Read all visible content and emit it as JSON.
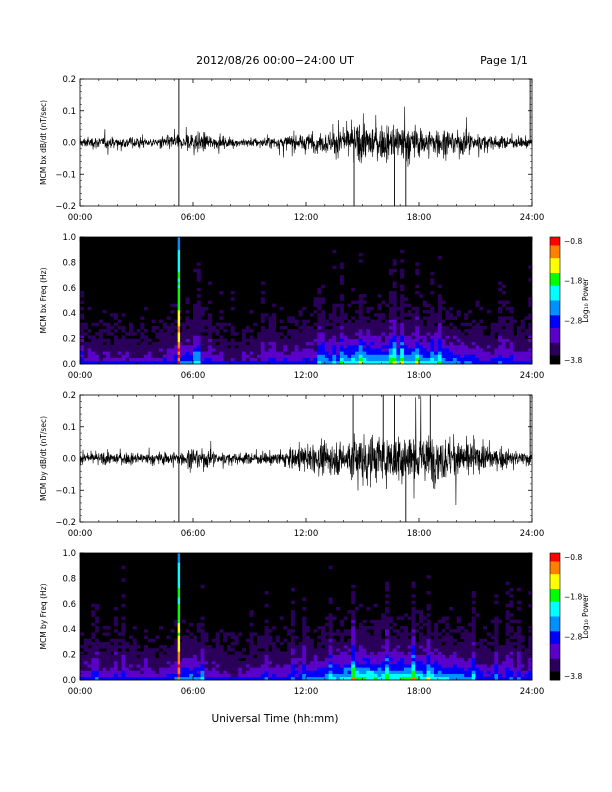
{
  "header": {
    "title": "2012/08/26  00:00−24:00 UT",
    "page": "Page 1/1"
  },
  "x_axis_title": "Universal Time (hh:mm)",
  "colors": {
    "background": "#ffffff",
    "trace": "#000000",
    "spectrogram_background": "#000000",
    "colorscale": [
      "#000000",
      "#2a005a",
      "#5a00c8",
      "#0000ff",
      "#0090ff",
      "#00ffff",
      "#00ff00",
      "#ffff00",
      "#ff8000",
      "#ff0000"
    ]
  },
  "chart_data": [
    {
      "type": "line",
      "ylabel": "MCM bx dB/dt (nT/sec)",
      "xlim": [
        0,
        24
      ],
      "ylim": [
        -0.2,
        0.2
      ],
      "x_ticks": [
        "00:00",
        "06:00",
        "12:00",
        "18:00",
        "24:00"
      ],
      "y_ticks": [
        "0.2",
        "0.1",
        "0.0",
        "−0.1",
        "−0.2"
      ],
      "y_tick_values": [
        0.2,
        0.1,
        0.0,
        -0.1,
        -0.2
      ],
      "envelope": {
        "hours": [
          0,
          2,
          4,
          5,
          5.5,
          6,
          7,
          8,
          10,
          12,
          13,
          14,
          15,
          16,
          17,
          18,
          19,
          20,
          22,
          24
        ],
        "amplitude": [
          0.025,
          0.03,
          0.02,
          0.04,
          0.03,
          0.06,
          0.03,
          0.02,
          0.025,
          0.04,
          0.05,
          0.07,
          0.09,
          0.08,
          0.09,
          0.07,
          0.07,
          0.06,
          0.03,
          0.025
        ]
      },
      "spikes": [
        {
          "t": 5.25,
          "value": 0.2
        },
        {
          "t": 5.25,
          "value": -0.2
        },
        {
          "t": 14.55,
          "value": -0.2
        },
        {
          "t": 16.7,
          "value": -0.2
        },
        {
          "t": 17.3,
          "value": -0.2
        },
        {
          "t": 23.9,
          "value": 0.2
        }
      ]
    },
    {
      "type": "heatmap",
      "ylabel": "MCM bx Freq (Hz)",
      "xlim": [
        0,
        24
      ],
      "ylim": [
        0,
        1.0
      ],
      "x_ticks": [
        "00:00",
        "06:00",
        "12:00",
        "18:00",
        "24:00"
      ],
      "y_ticks": [
        "1.0",
        "0.8",
        "0.6",
        "0.4",
        "0.2",
        "0.0"
      ],
      "y_tick_values": [
        1.0,
        0.8,
        0.6,
        0.4,
        0.2,
        0.0
      ],
      "activity": {
        "hours": [
          0,
          4,
          5,
          6,
          7,
          8,
          10,
          12,
          13,
          14,
          15,
          16,
          17,
          18,
          19,
          20,
          22,
          24
        ],
        "level": [
          0.3,
          0.25,
          0.45,
          0.55,
          0.3,
          0.2,
          0.3,
          0.4,
          0.5,
          0.6,
          0.75,
          0.65,
          0.7,
          0.65,
          0.6,
          0.5,
          0.35,
          0.3
        ]
      },
      "bright_column_hour": 5.25,
      "colorbar": {
        "label": "Log₁₀ Power",
        "ticks": [
          "−0.8",
          "−1.8",
          "−2.8",
          "−3.8"
        ],
        "range": [
          -3.8,
          -0.8
        ]
      }
    },
    {
      "type": "line",
      "ylabel": "MCM by dB/dt (nT/sec)",
      "xlim": [
        0,
        24
      ],
      "ylim": [
        -0.2,
        0.2
      ],
      "x_ticks": [
        "00:00",
        "06:00",
        "12:00",
        "18:00",
        "24:00"
      ],
      "y_ticks": [
        "0.2",
        "0.1",
        "0.0",
        "−0.1",
        "−0.2"
      ],
      "y_tick_values": [
        0.2,
        0.1,
        0.0,
        -0.1,
        -0.2
      ],
      "envelope": {
        "hours": [
          0,
          2,
          4,
          5,
          5.5,
          6,
          7,
          8,
          10,
          12,
          13,
          14,
          15,
          16,
          17,
          18,
          19,
          20,
          22,
          24
        ],
        "amplitude": [
          0.025,
          0.03,
          0.025,
          0.04,
          0.03,
          0.06,
          0.035,
          0.025,
          0.03,
          0.06,
          0.07,
          0.09,
          0.14,
          0.1,
          0.13,
          0.12,
          0.11,
          0.09,
          0.05,
          0.03
        ]
      },
      "spikes": [
        {
          "t": 5.25,
          "value": 0.2
        },
        {
          "t": 5.25,
          "value": -0.2
        },
        {
          "t": 14.5,
          "value": 0.2
        },
        {
          "t": 16.1,
          "value": 0.2
        },
        {
          "t": 16.7,
          "value": 0.2
        },
        {
          "t": 17.3,
          "value": -0.2
        },
        {
          "t": 18.6,
          "value": 0.2
        },
        {
          "t": 23.9,
          "value": 0.2
        }
      ]
    },
    {
      "type": "heatmap",
      "ylabel": "MCM by Freq (Hz)",
      "xlim": [
        0,
        24
      ],
      "ylim": [
        0,
        1.0
      ],
      "x_ticks": [
        "00:00",
        "06:00",
        "12:00",
        "18:00",
        "24:00"
      ],
      "y_ticks": [
        "1.0",
        "0.8",
        "0.6",
        "0.4",
        "0.2",
        "0.0"
      ],
      "y_tick_values": [
        1.0,
        0.8,
        0.6,
        0.4,
        0.2,
        0.0
      ],
      "activity": {
        "hours": [
          0,
          4,
          5,
          6,
          7,
          8,
          10,
          12,
          13,
          14,
          15,
          16,
          17,
          18,
          19,
          20,
          22,
          24
        ],
        "level": [
          0.35,
          0.3,
          0.45,
          0.55,
          0.35,
          0.25,
          0.35,
          0.45,
          0.55,
          0.65,
          0.8,
          0.7,
          0.75,
          0.7,
          0.65,
          0.55,
          0.4,
          0.35
        ]
      },
      "bright_column_hour": 5.25,
      "colorbar": {
        "label": "Log₁₀ Power",
        "ticks": [
          "−0.8",
          "−1.8",
          "−2.8",
          "−3.8"
        ],
        "range": [
          -3.8,
          -0.8
        ]
      }
    }
  ]
}
